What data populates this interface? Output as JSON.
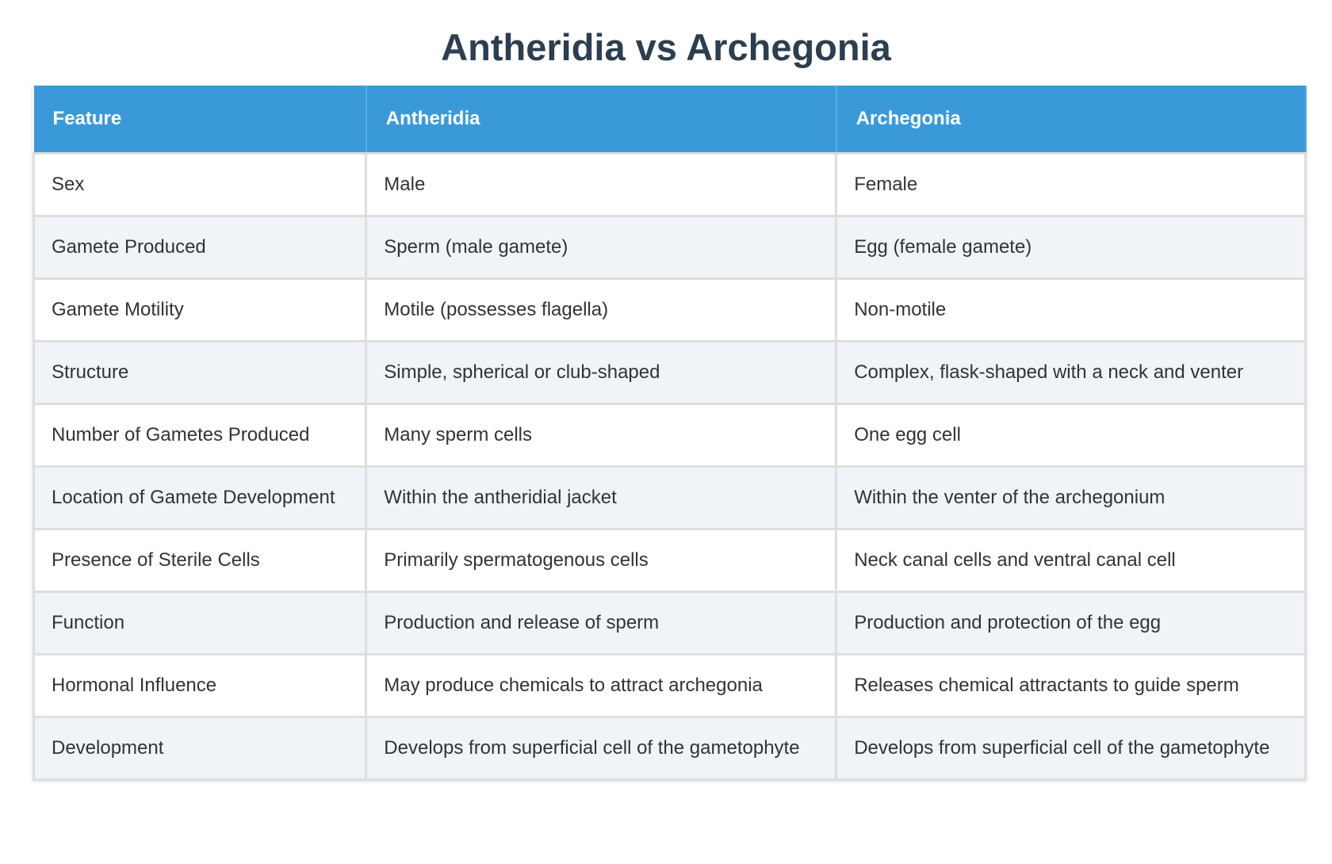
{
  "header": {
    "title": "Antheridia vs Archegonia"
  },
  "table": {
    "columns": [
      "Feature",
      "Antheridia",
      "Archegonia"
    ],
    "rows": [
      [
        "Sex",
        "Male",
        "Female"
      ],
      [
        "Gamete Produced",
        "Sperm (male gamete)",
        "Egg (female gamete)"
      ],
      [
        "Gamete Motility",
        "Motile (possesses flagella)",
        "Non-motile"
      ],
      [
        "Structure",
        "Simple, spherical or club-shaped",
        "Complex, flask-shaped with a neck and venter"
      ],
      [
        "Number of Gametes Produced",
        "Many sperm cells",
        "One egg cell"
      ],
      [
        "Location of Gamete Development",
        "Within the antheridial jacket",
        "Within the venter of the archegonium"
      ],
      [
        "Presence of Sterile Cells",
        "Primarily spermatogenous cells",
        "Neck canal cells and ventral canal cell"
      ],
      [
        "Function",
        "Production and release of sperm",
        "Production and protection of the egg"
      ],
      [
        "Hormonal Influence",
        "May produce chemicals to attract archegonia",
        "Releases chemical attractants to guide sperm"
      ],
      [
        "Development",
        "Develops from superficial cell of the gametophyte",
        "Develops from superficial cell of the gametophyte"
      ]
    ]
  }
}
